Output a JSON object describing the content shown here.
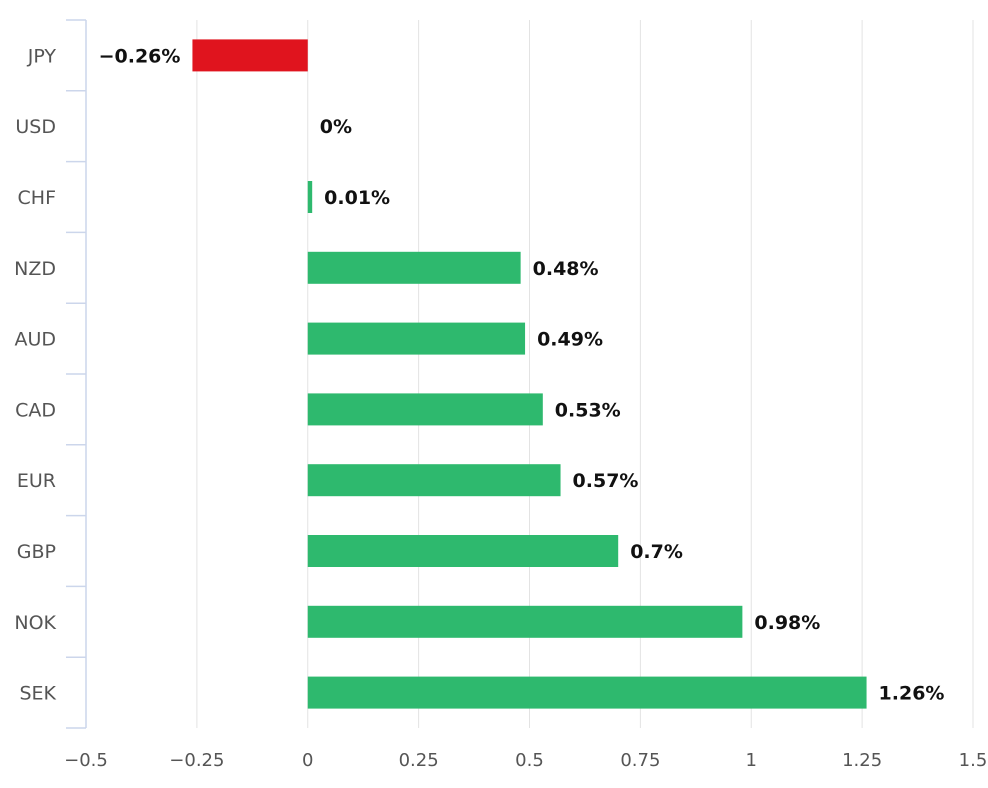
{
  "chart_data": {
    "type": "bar",
    "orientation": "horizontal",
    "title": "",
    "xlabel": "",
    "ylabel": "",
    "categories": [
      "JPY",
      "USD",
      "CHF",
      "NZD",
      "AUD",
      "CAD",
      "EUR",
      "GBP",
      "NOK",
      "SEK"
    ],
    "values": [
      -0.26,
      0,
      0.01,
      0.48,
      0.49,
      0.53,
      0.57,
      0.7,
      0.98,
      1.26
    ],
    "data_labels": [
      "−0.26%",
      "0%",
      "0.01%",
      "0.48%",
      "0.49%",
      "0.53%",
      "0.57%",
      "0.7%",
      "0.98%",
      "1.26%"
    ],
    "xlim": [
      -0.5,
      1.5
    ],
    "x_ticks": [
      -0.5,
      -0.25,
      0,
      0.25,
      0.5,
      0.75,
      1,
      1.25,
      1.5
    ],
    "x_tick_labels": [
      "−0.5",
      "−0.25",
      "0",
      "0.25",
      "0.5",
      "0.75",
      "1",
      "1.25",
      "1.5"
    ],
    "grid": "vertical",
    "legend": "none",
    "colors": {
      "positive": "#2eb96e",
      "negative": "#e0141e",
      "grid": "#e3e3e3",
      "axis": "#ccd6eb"
    }
  }
}
